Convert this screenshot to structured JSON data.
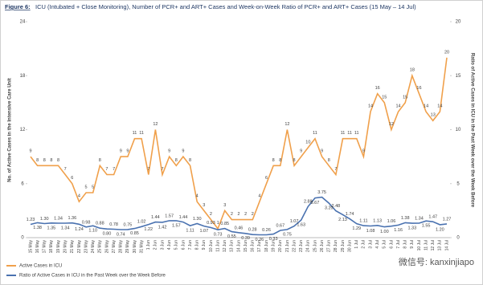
{
  "chart_data": {
    "type": "line",
    "figure_label": "Figure 6:",
    "title": "ICU (Intubated + Close Monitoring), Number of PCR+ and ART+ Cases and Week-on-Week Ratio of PCR+ and ART+ Cases (15 May – 14 Jul)",
    "ylabel": "No. of Active Cases in the Intensive Care Unit",
    "y2label": "Ratio of Active Cases in ICU in the Past Week over the Week Before",
    "watermark": "微信号: kanxinjiapo",
    "legend": "bottom-left",
    "categories": [
      "15 May",
      "16 May",
      "17 May",
      "18 May",
      "19 May",
      "20 May",
      "21 May",
      "22 May",
      "23 May",
      "24 May",
      "25 May",
      "26 May",
      "27 May",
      "28 May",
      "29 May",
      "30 May",
      "31 May",
      "1 Jun",
      "2 Jun",
      "3 Jun",
      "4 Jun",
      "5 Jun",
      "6 Jun",
      "7 Jun",
      "8 Jun",
      "9 Jun",
      "10 Jun",
      "11 Jun",
      "12 Jun",
      "13 Jun",
      "14 Jun",
      "15 Jun",
      "16 Jun",
      "17 Jun",
      "18 Jun",
      "19 Jun",
      "20 Jun",
      "21 Jun",
      "22 Jun",
      "23 Jun",
      "24 Jun",
      "25 Jun",
      "26 Jun",
      "27 Jun",
      "28 Jun",
      "29 Jun",
      "30 Jun",
      "1 Jul",
      "2 Jul",
      "3 Jul",
      "4 Jul",
      "5 Jul",
      "6 Jul",
      "7 Jul",
      "8 Jul",
      "9 Jul",
      "10 Jul",
      "11 Jul",
      "12 Jul",
      "13 Jul",
      "14 Jul"
    ],
    "ylim": [
      0,
      24
    ],
    "yticks": [
      0,
      6,
      12,
      18,
      24
    ],
    "y2lim": [
      0,
      20
    ],
    "y2ticks": [
      0,
      5,
      10,
      15,
      20
    ],
    "series": [
      {
        "name": "Active Cases in ICU",
        "color": "#f0a04b",
        "values": [
          9,
          8,
          8,
          8,
          8,
          7,
          6,
          4,
          5,
          5,
          8,
          7,
          7,
          9,
          9,
          11,
          11,
          7,
          12,
          7,
          9,
          8,
          9,
          8,
          4,
          3,
          2,
          1,
          3,
          2,
          2,
          2,
          2,
          4,
          6,
          8,
          8,
          12,
          8,
          9,
          10,
          11,
          9,
          8,
          7,
          11,
          11,
          11,
          9,
          14,
          16,
          15,
          12,
          14,
          15,
          18,
          16,
          14,
          13,
          14,
          20
        ]
      },
      {
        "name": "Ratio of Active Cases in ICU in the Past Week over the Week Before",
        "color": "#4a72b0",
        "axis": "y2",
        "values": [
          1.23,
          1.38,
          1.3,
          1.35,
          1.34,
          1.34,
          1.36,
          1.24,
          0.98,
          1.1,
          0.88,
          0.8,
          0.78,
          0.74,
          0.75,
          0.85,
          1.02,
          1.22,
          1.44,
          1.42,
          1.57,
          1.57,
          1.44,
          1.11,
          1.3,
          1.07,
          0.93,
          0.73,
          0.85,
          0.55,
          0.46,
          0.39,
          0.28,
          0.26,
          0.26,
          0.33,
          0.67,
          0.75,
          1.07,
          1.63,
          2.88,
          3.67,
          3.75,
          3.2,
          2.48,
          2.13,
          1.74,
          1.29,
          1.11,
          1.08,
          1.13,
          1.0,
          1.06,
          1.16,
          1.38,
          1.33,
          1.34,
          1.55,
          1.47,
          1.2,
          1.27
        ],
        "value_labels": [
          "1.23",
          "1.38",
          "1.30",
          "1.35",
          "1.34",
          "1.34",
          "1.36",
          "1.24",
          "0.98",
          "1.10",
          "0.88",
          "0.80",
          "0.78",
          "0.74",
          "0.75",
          "0.85",
          "1.02",
          "1.22",
          "1.44",
          "1.42",
          "1.57",
          "1.57",
          "1.44",
          "1.11",
          "1.30",
          "1.07",
          "0.93",
          "0.73",
          "0.85",
          "0.55",
          "0.46",
          "0.39",
          "0.28",
          "0.26",
          "0.26",
          "0.33",
          "0.67",
          "0.75",
          "1.07",
          "1.63",
          "2.88",
          "3.67",
          "3.75",
          "3.20",
          "2.48",
          "2.13",
          "1.74",
          "1.29",
          "1.11",
          "1.08",
          "1.13",
          "1.00",
          "1.06",
          "1.16",
          "1.38",
          "1.33",
          "1.34",
          "1.55",
          "1.47",
          "1.20",
          "1.27"
        ]
      }
    ]
  }
}
